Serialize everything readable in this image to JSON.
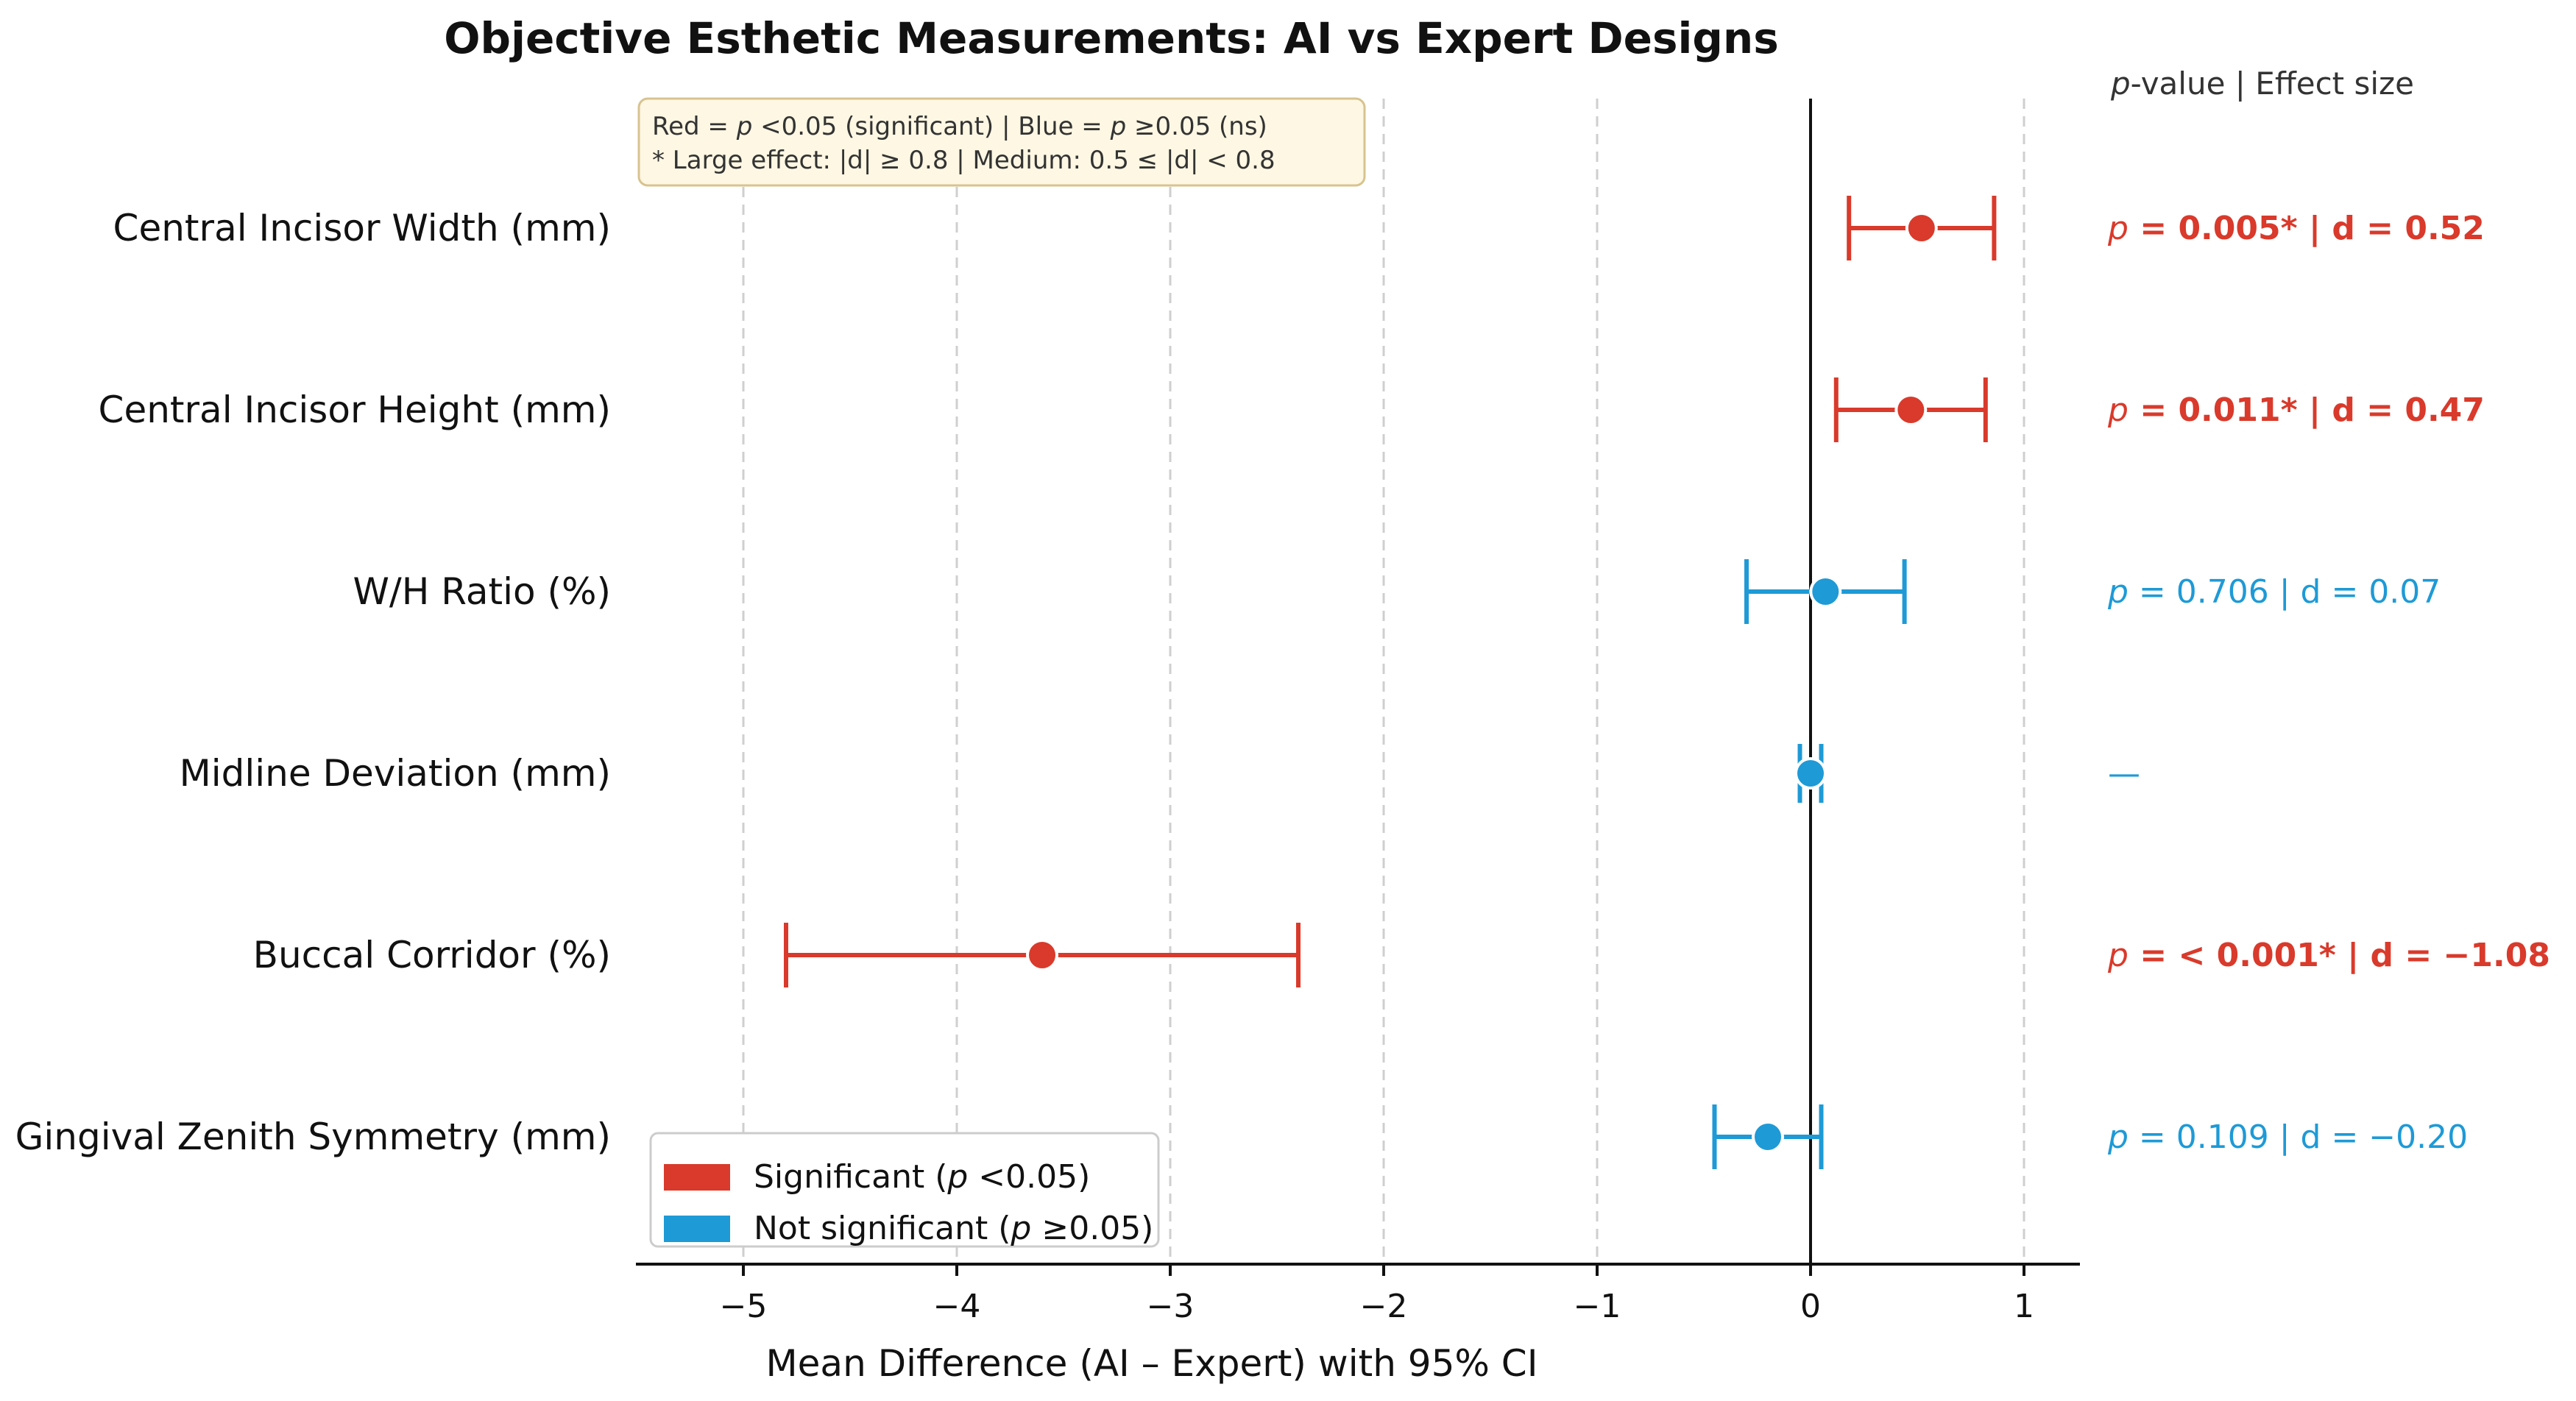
{
  "chart_data": {
    "type": "forest",
    "title": "Objective Esthetic Measurements: AI vs Expert Designs",
    "xlabel": "Mean Difference (AI – Expert) with 95% CI",
    "xlim": [
      -5.5,
      1.3
    ],
    "xticks": [
      -5,
      -4,
      -3,
      -2,
      -1,
      0,
      1
    ],
    "xtick_labels": [
      "−5",
      "−4",
      "−3",
      "−2",
      "−1",
      "0",
      "1"
    ],
    "grid": "vertical dashed",
    "column_header": {
      "p": "p",
      "p_rest": "-value",
      "sep": "  |  ",
      "effect": "Effect size"
    },
    "rows": [
      {
        "label": "Central Incisor Width (mm)",
        "mean": 0.52,
        "ci_low": 0.18,
        "ci_high": 0.86,
        "significant": true,
        "p_text": "p",
        "stat_text": " = 0.005*  |  d = 0.52"
      },
      {
        "label": "Central Incisor Height (mm)",
        "mean": 0.47,
        "ci_low": 0.12,
        "ci_high": 0.82,
        "significant": true,
        "p_text": "p",
        "stat_text": " = 0.011*  |  d = 0.47"
      },
      {
        "label": "W/H Ratio (%)",
        "mean": 0.07,
        "ci_low": -0.3,
        "ci_high": 0.44,
        "significant": false,
        "p_text": "p",
        "stat_text": " = 0.706  |  d = 0.07"
      },
      {
        "label": "Midline Deviation (mm)",
        "mean": 0.0,
        "ci_low": -0.05,
        "ci_high": 0.05,
        "significant": false,
        "p_text": "",
        "stat_text": "—"
      },
      {
        "label": "Buccal Corridor (%)",
        "mean": -3.6,
        "ci_low": -4.8,
        "ci_high": -2.4,
        "significant": true,
        "p_text": "p",
        "stat_text": " = < 0.001*  |  d = −1.08"
      },
      {
        "label": "Gingival Zenith Symmetry (mm)",
        "mean": -0.2,
        "ci_low": -0.45,
        "ci_high": 0.05,
        "significant": false,
        "p_text": "p",
        "stat_text": " = 0.109  |  d = −0.20"
      }
    ],
    "note": {
      "line1": [
        {
          "t": "Red = ",
          "i": false
        },
        {
          "t": "p",
          "i": true
        },
        {
          "t": " <0.05 (significant)  |  Blue = ",
          "i": false
        },
        {
          "t": "p",
          "i": true
        },
        {
          "t": " ≥0.05 (ns)",
          "i": false
        }
      ],
      "line2": [
        {
          "t": "* Large effect: |d| ≥ 0.8  |  Medium: 0.5 ≤ |d| < 0.8",
          "i": false
        }
      ]
    },
    "legend": {
      "position": "lower-left",
      "items": [
        {
          "label_pre": "Significant (",
          "label_p": "p",
          "label_post": " <0.05)",
          "color": "#d93a2b"
        },
        {
          "label_pre": "Not significant (",
          "label_p": "p",
          "label_post": " ≥0.05)",
          "color": "#1e9ad6"
        }
      ]
    },
    "colors": {
      "significant": "#d93a2b",
      "not_significant": "#1e9ad6",
      "grid": "#cfcfcf",
      "axis": "#111111"
    }
  }
}
